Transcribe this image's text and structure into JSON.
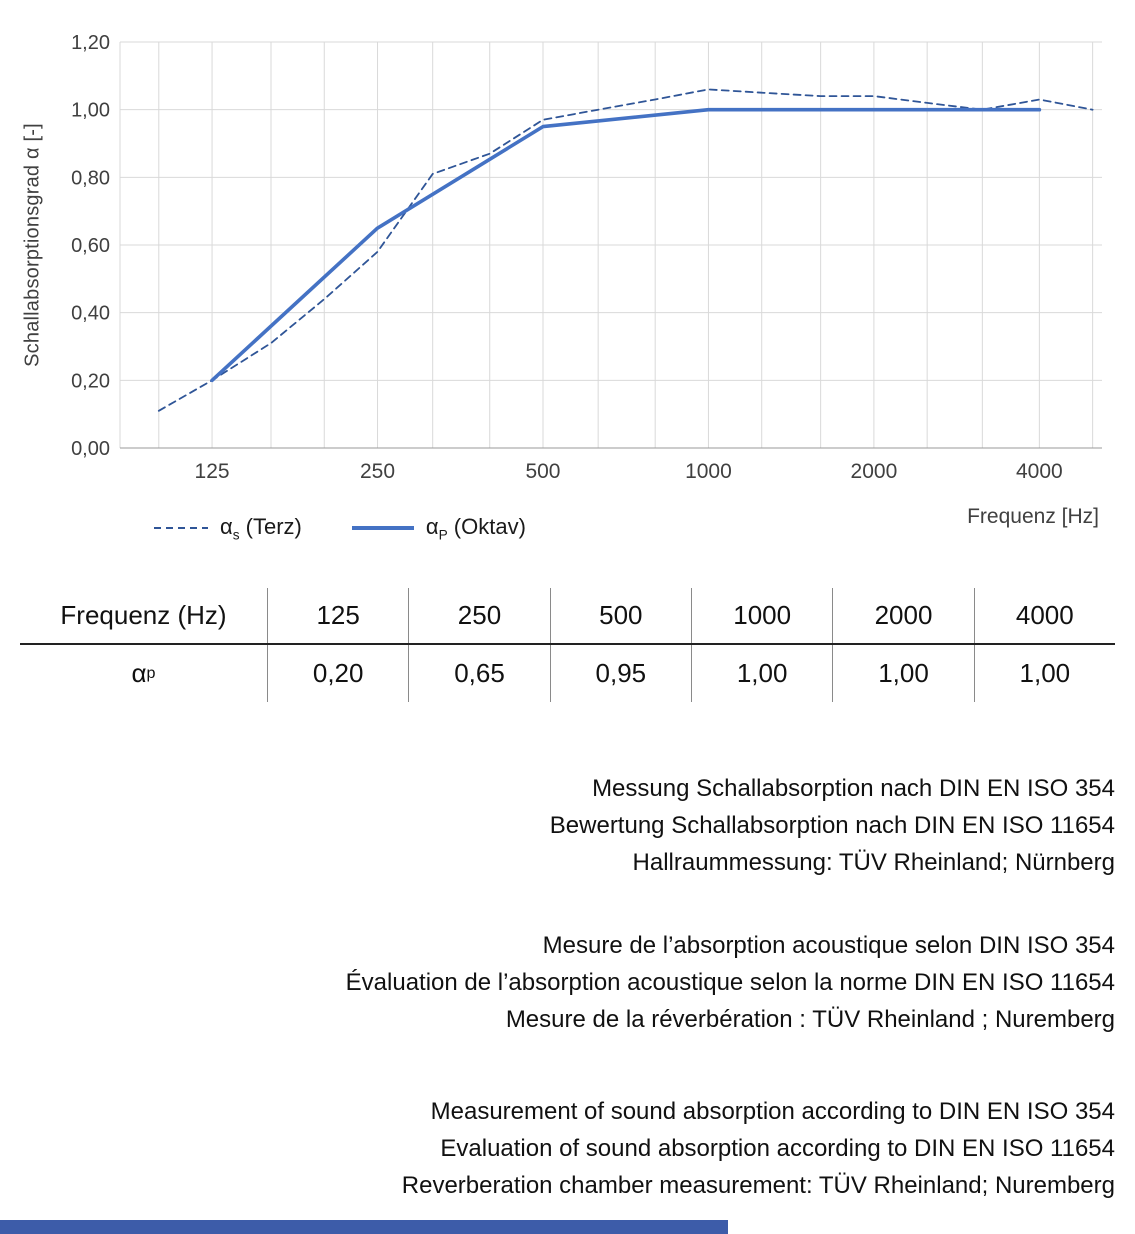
{
  "colors": {
    "solid_line_blue": "#4472C4",
    "dashed_line_blue": "#2F5597",
    "gridline_gray": "#D9D9D9",
    "footer_blue": "#3D5CA9"
  },
  "chart_data": {
    "type": "line",
    "title": "",
    "xlabel": "Frequenz [Hz]",
    "ylabel": "Schallabsorptionsgrad α [-]",
    "x_scale": "log",
    "xlim": [
      85,
      5200
    ],
    "ylim": [
      0,
      1.2
    ],
    "grid": true,
    "legend_position": "bottom-left",
    "x_ticks": [
      125,
      250,
      500,
      1000,
      2000,
      4000
    ],
    "x_tick_labels": [
      "125",
      "250",
      "500",
      "1000",
      "2000",
      "4000"
    ],
    "x_gridlines": [
      100,
      125,
      160,
      200,
      250,
      315,
      400,
      500,
      630,
      800,
      1000,
      1250,
      1600,
      2000,
      2500,
      3150,
      4000,
      5000
    ],
    "y_ticks": [
      0,
      0.2,
      0.4,
      0.6,
      0.8,
      1.0,
      1.2
    ],
    "y_tick_labels": [
      "0,00",
      "0,20",
      "0,40",
      "0,60",
      "0,80",
      "1,00",
      "1,20"
    ],
    "series": [
      {
        "name": "αs (Terz)",
        "style": "dashed",
        "color": "#2F5597",
        "x": [
          100,
          125,
          160,
          200,
          250,
          315,
          400,
          500,
          630,
          800,
          1000,
          1250,
          1600,
          2000,
          2500,
          3150,
          4000,
          5000
        ],
        "values": [
          0.11,
          0.2,
          0.31,
          0.44,
          0.58,
          0.81,
          0.87,
          0.97,
          1.0,
          1.03,
          1.06,
          1.05,
          1.04,
          1.04,
          1.02,
          1.0,
          1.03,
          1.0
        ]
      },
      {
        "name": "αP (Oktav)",
        "style": "solid",
        "color": "#4472C4",
        "x": [
          125,
          250,
          500,
          1000,
          2000,
          4000
        ],
        "values": [
          0.2,
          0.65,
          0.95,
          1.0,
          1.0,
          1.0
        ]
      }
    ]
  },
  "legend": {
    "items": [
      {
        "base": "α",
        "sub": "s",
        "rest": " (Terz)"
      },
      {
        "base": "α",
        "sub": "P",
        "rest": " (Oktav)"
      }
    ]
  },
  "table": {
    "rows": [
      {
        "label_base": "Frequenz (Hz)",
        "label_sub": "",
        "cells": [
          "125",
          "250",
          "500",
          "1000",
          "2000",
          "4000"
        ]
      },
      {
        "label_base": "α",
        "label_sub": "p",
        "cells": [
          "0,20",
          "0,65",
          "0,95",
          "1,00",
          "1,00",
          "1,00"
        ]
      }
    ]
  },
  "notes": {
    "german": [
      "Messung Schallabsorption nach DIN EN ISO 354",
      "Bewertung Schallabsorption nach DIN EN ISO 11654",
      "Hallraummessung: TÜV Rheinland; Nürnberg"
    ],
    "french": [
      "Mesure de l’absorption acoustique selon DIN ISO 354",
      "Évaluation de l’absorption acoustique selon la norme DIN EN ISO 11654",
      "Mesure de la réverbération : TÜV Rheinland ; Nuremberg"
    ],
    "english": [
      "Measurement of sound absorption according to DIN EN ISO 354",
      "Evaluation of sound absorption according to DIN EN ISO 11654",
      "Reverberation chamber measurement: TÜV Rheinland; Nuremberg"
    ]
  }
}
